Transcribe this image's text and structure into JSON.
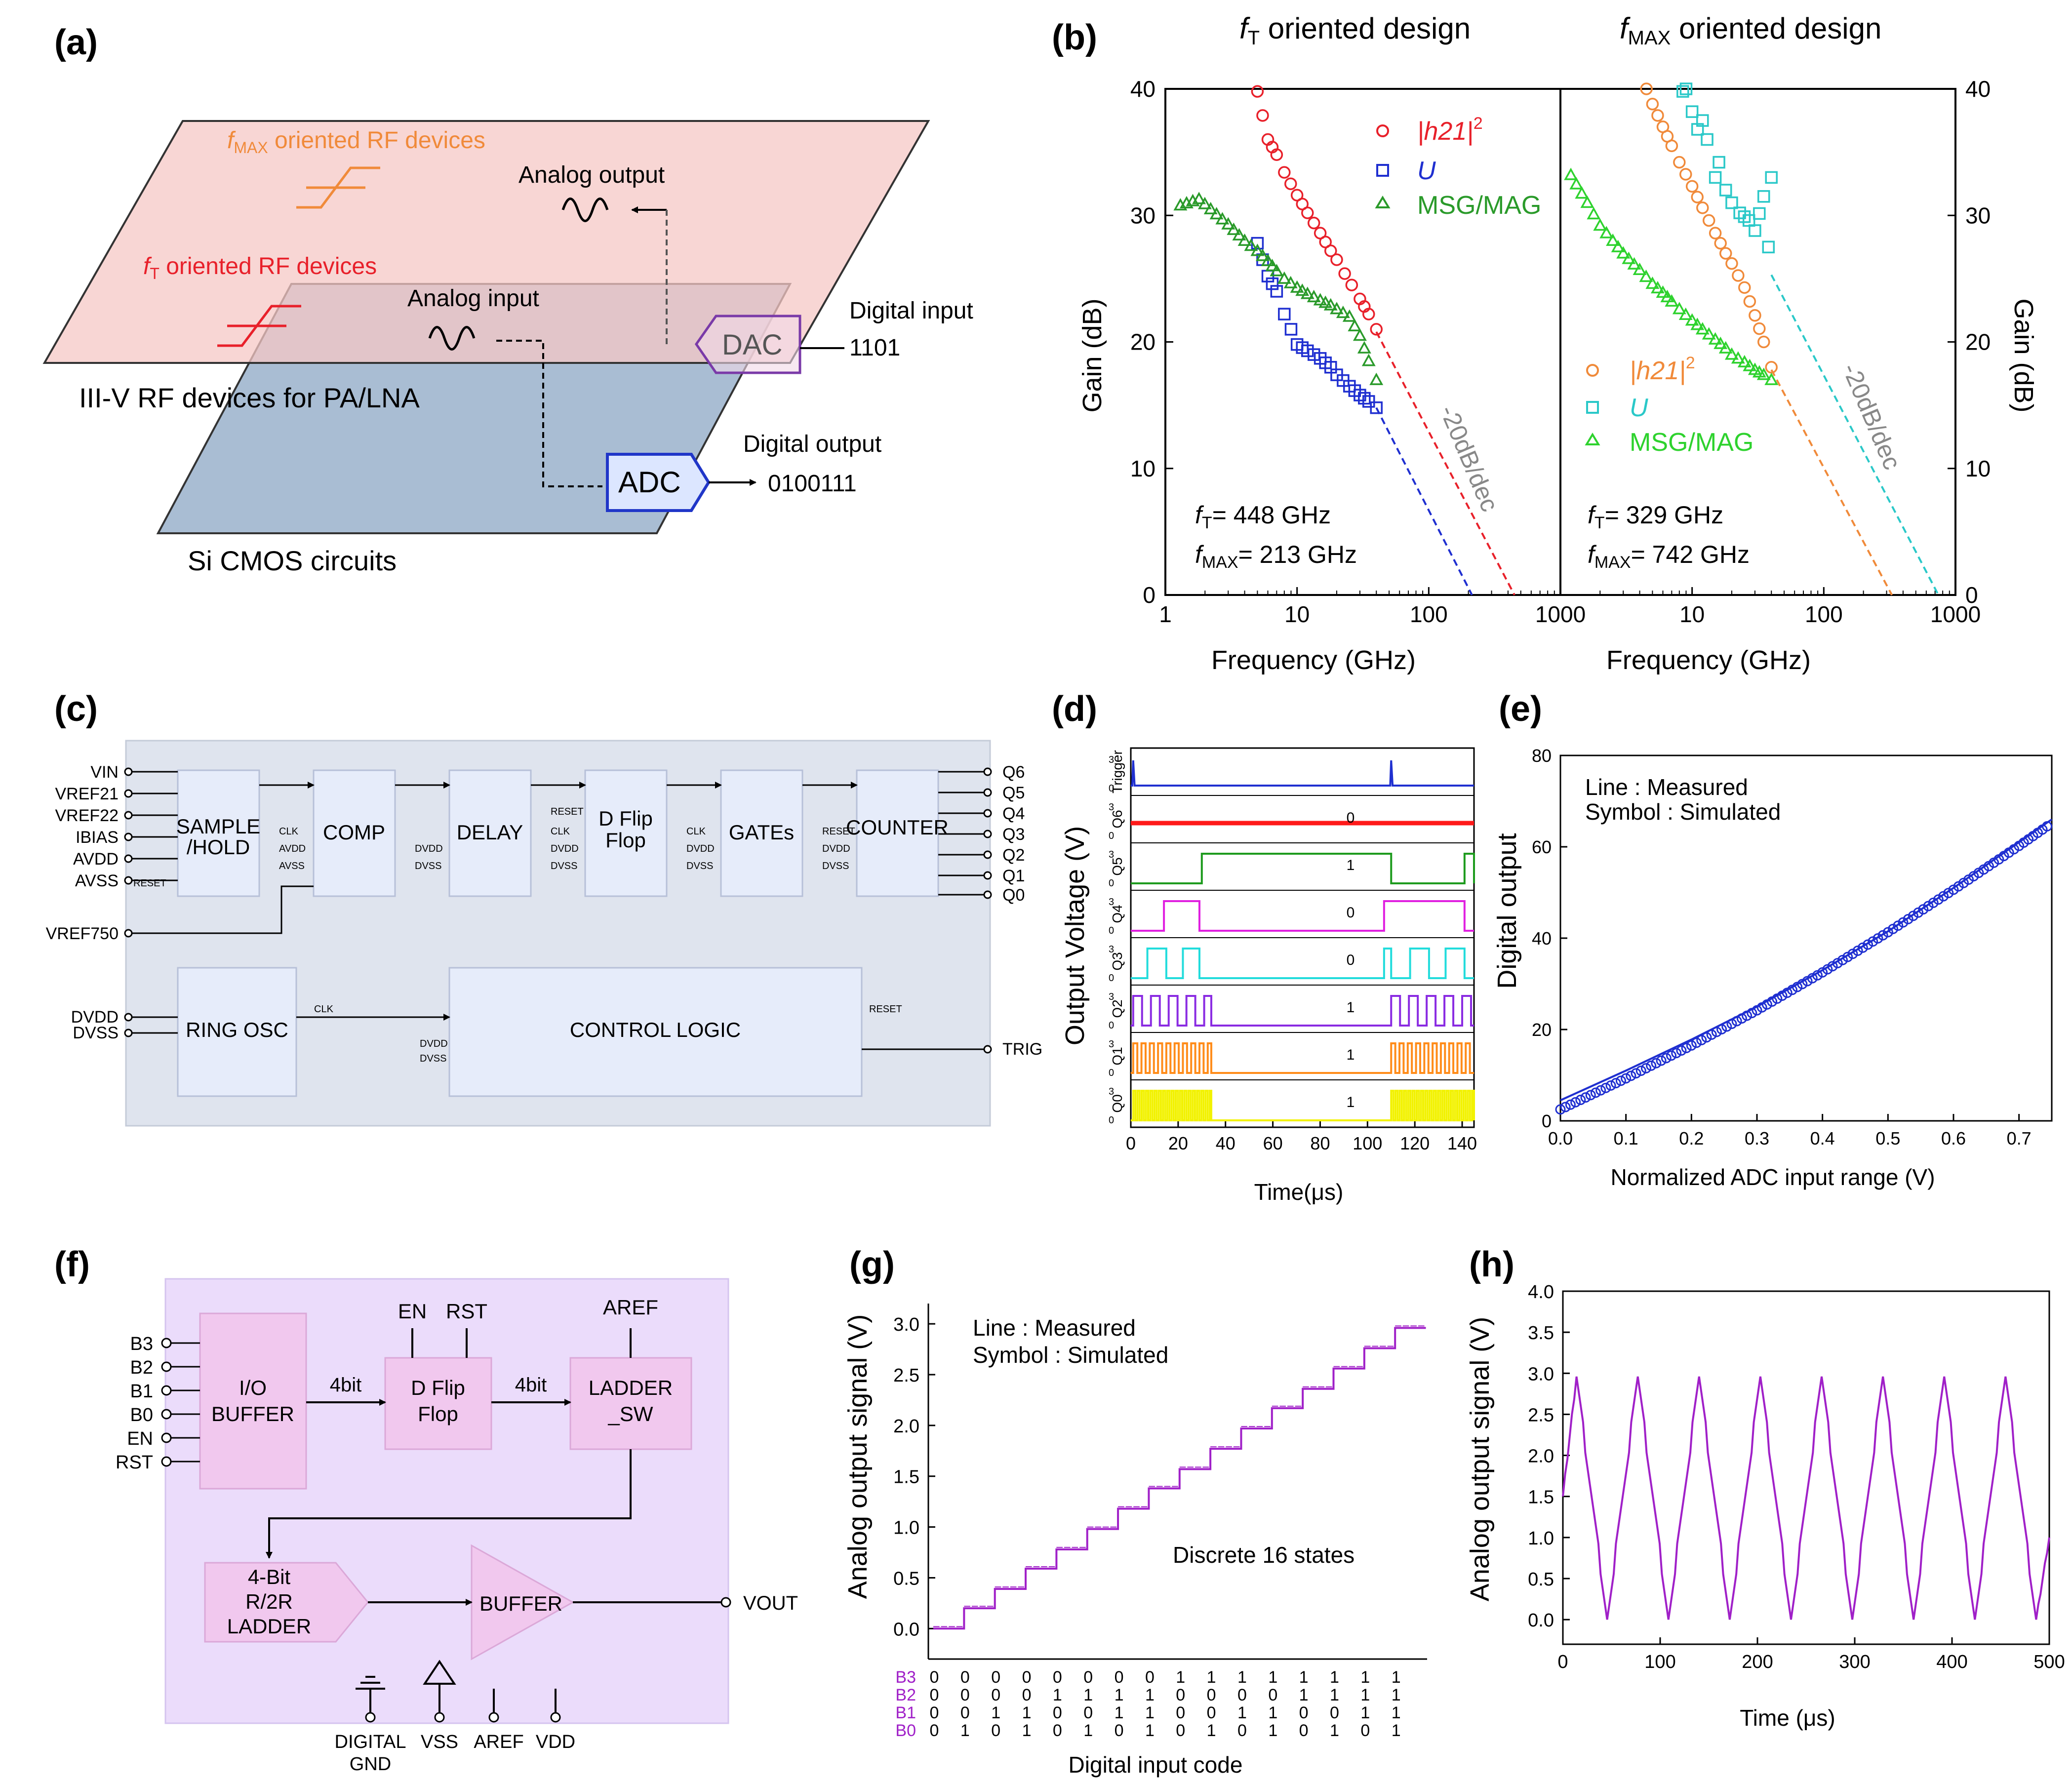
{
  "panels": {
    "a": {
      "label": "(a)",
      "fmax_rf_prefix": "f",
      "fmax_rf_sub": "MAX",
      "fmax_rf_rest": " oriented  RF devices",
      "ft_rf_prefix": "f",
      "ft_rf_sub": "T",
      "ft_rf_rest": " oriented  RF devices",
      "analog_output": "Analog output",
      "analog_input": "Analog input",
      "digital_input": "Digital input",
      "digital_input_value": "1101",
      "digital_output": "Digital output",
      "digital_output_value": "0100111",
      "dac": "DAC",
      "adc": "ADC",
      "iiiv_caption": "III-V RF devices for PA/LNA",
      "si_caption": "Si CMOS circuits",
      "colors": {
        "iiiv_plane": "#f6c8c5",
        "si_plane": "#a9bdd3",
        "fmax_text": "#f08a3a",
        "ft_text": "#e8202a",
        "adc_stroke": "#2036c8",
        "dac_stroke": "#7a3aa8"
      }
    },
    "b": {
      "label": "(b)",
      "left_title_prefix": "f",
      "left_title_sub": "T",
      "left_title_rest": " oriented design",
      "right_title_prefix": "f",
      "right_title_sub": "MAX",
      "right_title_rest": " oriented design",
      "ylabel": "Gain (dB)",
      "xlabel": "Frequency (GHz)",
      "slope_label": "-20dB/dec",
      "left_ft": "= 448 GHz",
      "left_fmax": "= 213 GHz",
      "right_ft": "= 329 GHz",
      "right_fmax": "= 742 GHz",
      "ft_sym": "f",
      "ft_sub": "T",
      "fmax_sym": "f",
      "fmax_sub": "MAX",
      "legend_h21": "|h21|",
      "legend_h21_sup": "2",
      "legend_u": "U",
      "legend_msg": "MSG/MAG"
    },
    "c": {
      "label": "(c)",
      "blocks": {
        "sample_hold_1": "SAMPLE",
        "sample_hold_2": "/HOLD",
        "comp": "COMP",
        "delay": "DELAY",
        "dff_1": "D Flip",
        "dff_2": "Flop",
        "gates": "GATEs",
        "counter": "COUNTER",
        "ring": "RING OSC",
        "control": "CONTROL LOGIC"
      },
      "inputs": [
        "VIN",
        "VREF21",
        "VREF22",
        "IBIAS",
        "AVDD",
        "AVSS"
      ],
      "outputs": [
        "Q6",
        "Q5",
        "Q4",
        "Q3",
        "Q2",
        "Q1",
        "Q0"
      ],
      "vref750": "VREF750",
      "dvdd": "DVDD",
      "dvss": "DVSS",
      "trig": "TRIG",
      "clk": "CLK",
      "reset": "RESET",
      "avdd": "AVDD",
      "avss": "AVSS"
    },
    "d": {
      "label": "(d)",
      "ylabel": "Output Voltage (V)",
      "xlabel": "Time(μs)",
      "channels": [
        "Trigger",
        "Q6",
        "Q5",
        "Q4",
        "Q3",
        "Q2",
        "Q1",
        "Q0"
      ],
      "states": [
        "0",
        "1",
        "0",
        "0",
        "1",
        "1",
        "1"
      ],
      "tick_3": "3",
      "tick_0": "0"
    },
    "e": {
      "label": "(e)",
      "ylabel": "Digital output",
      "xlabel": "Normalized ADC input range (V)",
      "note_line": "Line : Measured",
      "note_sym": "Symbol : Simulated"
    },
    "f": {
      "label": "(f)",
      "pins_in": [
        "B3",
        "B2",
        "B1",
        "B0",
        "EN",
        "RST"
      ],
      "io_1": "I/O",
      "io_2": "BUFFER",
      "dff_1": "D Flip",
      "dff_2": "Flop",
      "ladder_sw_1": "LADDER",
      "ladder_sw_2": "_SW",
      "r2r_1": "4-Bit",
      "r2r_2": "R/2R",
      "r2r_3": "LADDER",
      "buffer": "BUFFER",
      "bus_1": "4bit",
      "bus_2": "4bit",
      "en": "EN",
      "rst": "RST",
      "aref_top": "AREF",
      "vout": "VOUT",
      "digital": "DIGITAL",
      "gnd": "GND",
      "vss": "VSS",
      "aref": "AREF",
      "vdd": "VDD"
    },
    "g": {
      "label": "(g)",
      "ylabel": "Analog output signal (V)",
      "xlabel": "Digital input code",
      "note_line": "Line : Measured",
      "note_sym": "Symbol : Simulated",
      "note_states": "Discrete 16 states",
      "bit_names": [
        "B3",
        "B2",
        "B1",
        "B0"
      ]
    },
    "h": {
      "label": "(h)",
      "ylabel": "Analog output signal (V)",
      "xlabel": "Time (μs)"
    }
  },
  "chart_data": [
    {
      "id": "b-left",
      "type": "scatter",
      "xscale": "log",
      "xlim": [
        1,
        1000
      ],
      "ylim": [
        0,
        40
      ],
      "xticks": [
        1,
        10,
        100,
        1000
      ],
      "yticks": [
        0,
        10,
        20,
        30,
        40
      ],
      "xlabel": "Frequency (GHz)",
      "ylabel": "Gain (dB)",
      "series": [
        {
          "name": "|h21|^2",
          "marker": "circle",
          "color": "#e8202a",
          "points": [
            [
              5,
              39.8
            ],
            [
              6,
              36
            ],
            [
              7,
              34.8
            ],
            [
              8,
              33.4
            ],
            [
              10,
              31.6
            ],
            [
              12,
              30.2
            ],
            [
              15,
              28.6
            ],
            [
              18,
              27.2
            ],
            [
              20,
              26.5
            ],
            [
              23,
              25.4
            ],
            [
              26,
              24.5
            ],
            [
              30,
              23.4
            ],
            [
              35,
              22.2
            ],
            [
              40,
              21
            ]
          ]
        },
        {
          "name": "U",
          "marker": "square",
          "color": "#1f2fd0",
          "points": [
            [
              5,
              27.8
            ],
            [
              6,
              25.2
            ],
            [
              7,
              24
            ],
            [
              8,
              22.2
            ],
            [
              9,
              21
            ],
            [
              10,
              19.8
            ],
            [
              12,
              19.3
            ],
            [
              15,
              18.7
            ],
            [
              18,
              18
            ],
            [
              20,
              17.4
            ],
            [
              25,
              16.5
            ],
            [
              30,
              15.8
            ],
            [
              35,
              15.3
            ],
            [
              40,
              14.8
            ]
          ]
        },
        {
          "name": "MSG/MAG",
          "marker": "triangle",
          "color": "#2a9a2a",
          "points": [
            [
              1.3,
              30.8
            ],
            [
              1.8,
              31.3
            ],
            [
              3,
              29.3
            ],
            [
              4,
              28
            ],
            [
              5,
              27.2
            ],
            [
              6,
              26.4
            ],
            [
              7,
              25.6
            ],
            [
              8,
              25
            ],
            [
              10,
              24.3
            ],
            [
              12,
              23.8
            ],
            [
              15,
              23.3
            ],
            [
              18,
              22.9
            ],
            [
              20,
              22.6
            ],
            [
              25,
              22
            ],
            [
              30,
              20.5
            ],
            [
              35,
              18.5
            ],
            [
              40,
              17
            ]
          ]
        }
      ],
      "extrapolations": [
        {
          "color": "#e8202a",
          "from": [
            40,
            20.8
          ],
          "to": [
            448,
            0
          ]
        },
        {
          "color": "#1f2fd0",
          "from": [
            40,
            14.8
          ],
          "to": [
            213,
            0
          ]
        }
      ]
    },
    {
      "id": "b-right",
      "type": "scatter",
      "xscale": "log",
      "xlim": [
        1,
        1000
      ],
      "ylim": [
        0,
        40
      ],
      "xticks": [
        1,
        10,
        100,
        1000
      ],
      "yticks": [
        0,
        10,
        20,
        30,
        40
      ],
      "xlabel": "Frequency (GHz)",
      "ylabel": "Gain (dB)",
      "series": [
        {
          "name": "|h21|^2",
          "marker": "circle",
          "color": "#f08a3a",
          "points": [
            [
              4.5,
              40
            ],
            [
              5,
              38.8
            ],
            [
              6,
              37
            ],
            [
              7,
              35.5
            ],
            [
              8,
              34.2
            ],
            [
              10,
              32.3
            ],
            [
              12,
              30.6
            ],
            [
              15,
              28.6
            ],
            [
              18,
              27
            ],
            [
              20,
              26.2
            ],
            [
              25,
              24.3
            ],
            [
              30,
              22.1
            ],
            [
              35,
              20
            ],
            [
              40,
              18
            ]
          ]
        },
        {
          "name": "U",
          "marker": "square",
          "color": "#2ac8c8",
          "points": [
            [
              8.5,
              39.8
            ],
            [
              9,
              40
            ],
            [
              10,
              38.2
            ],
            [
              11,
              36.8
            ],
            [
              12,
              37.5
            ],
            [
              13,
              36
            ],
            [
              15,
              33
            ],
            [
              16,
              34.2
            ],
            [
              18,
              32
            ],
            [
              20,
              31
            ],
            [
              23,
              30.2
            ],
            [
              27,
              29.6
            ],
            [
              30,
              28.8
            ],
            [
              35,
              31.5
            ],
            [
              38,
              27.5
            ],
            [
              40,
              33
            ]
          ]
        },
        {
          "name": "MSG/MAG",
          "marker": "triangle",
          "color": "#2ed22e",
          "points": [
            [
              1.2,
              33.2
            ],
            [
              1.6,
              31
            ],
            [
              2,
              29.2
            ],
            [
              2.5,
              28
            ],
            [
              3,
              27
            ],
            [
              4,
              25.7
            ],
            [
              5,
              24.6
            ],
            [
              6,
              23.9
            ],
            [
              7,
              23.2
            ],
            [
              8,
              22.6
            ],
            [
              10,
              21.7
            ],
            [
              12,
              21
            ],
            [
              15,
              20.2
            ],
            [
              18,
              19.5
            ],
            [
              20,
              19
            ],
            [
              25,
              18.4
            ],
            [
              30,
              17.8
            ],
            [
              35,
              17.4
            ],
            [
              40,
              17
            ]
          ]
        }
      ],
      "extrapolations": [
        {
          "color": "#f08a3a",
          "from": [
            40,
            17.8
          ],
          "to": [
            329,
            0
          ]
        },
        {
          "color": "#2ac8c8",
          "from": [
            40,
            25.3
          ],
          "to": [
            742,
            0
          ]
        }
      ]
    },
    {
      "id": "d",
      "type": "line",
      "xlim": [
        0,
        145
      ],
      "xticks": [
        0,
        20,
        40,
        60,
        80,
        100,
        120,
        140
      ],
      "xlabel": "Time(μs)",
      "ylabel": "Output Voltage (V)",
      "traces": [
        {
          "name": "Trigger",
          "color": "#2030d0",
          "kind": "trigger",
          "pulses": [
            1,
            110
          ]
        },
        {
          "name": "Q6",
          "color": "#ff1a1a",
          "state": "0",
          "kind": "constant",
          "level": 3
        },
        {
          "name": "Q5",
          "color": "#1e9b1e",
          "state": "1",
          "kind": "gate",
          "high": [
            [
              30,
              110
            ],
            [
              141,
              145
            ]
          ],
          "period": 0
        },
        {
          "name": "Q4",
          "color": "#e020e0",
          "state": "0",
          "kind": "gate",
          "high": [
            [
              14,
              29
            ],
            [
              107,
              141
            ]
          ],
          "period": 0
        },
        {
          "name": "Q3",
          "color": "#22dcdc",
          "state": "0",
          "kind": "gate",
          "high": [
            [
              7,
              15
            ],
            [
              22,
              29
            ],
            [
              107,
              110
            ],
            [
              118,
              126
            ],
            [
              133,
              141
            ]
          ],
          "period": 0
        },
        {
          "name": "Q2",
          "color": "#8a2be2",
          "state": "1",
          "kind": "burst",
          "bursts": [
            [
              1,
              34
            ],
            [
              110,
              145
            ]
          ],
          "period": 7.5
        },
        {
          "name": "Q1",
          "color": "#ff8c1a",
          "state": "1",
          "kind": "burst",
          "bursts": [
            [
              1,
              34
            ],
            [
              110,
              145
            ]
          ],
          "period": 3.5
        },
        {
          "name": "Q0",
          "color": "#f2f200",
          "state": "1",
          "kind": "burst",
          "bursts": [
            [
              1,
              34
            ],
            [
              110,
              145
            ]
          ],
          "period": 1.8
        }
      ]
    },
    {
      "id": "e",
      "type": "line",
      "xlim": [
        0,
        0.75
      ],
      "ylim": [
        0,
        80
      ],
      "xticks": [
        0,
        0.1,
        0.2,
        0.3,
        0.4,
        0.5,
        0.6,
        0.7
      ],
      "yticks": [
        0,
        20,
        40,
        60,
        80
      ],
      "xlabel": "Normalized ADC input range (V)",
      "ylabel": "Digital output",
      "series": [
        {
          "name": "Measured",
          "style": "line",
          "color": "#1f2fd0",
          "points": [
            [
              0,
              4.5
            ],
            [
              0.1,
              11
            ],
            [
              0.2,
              17.8
            ],
            [
              0.3,
              25
            ],
            [
              0.4,
              33
            ],
            [
              0.5,
              41.5
            ],
            [
              0.6,
              51
            ],
            [
              0.7,
              61
            ],
            [
              0.75,
              66
            ]
          ]
        },
        {
          "name": "Simulated",
          "style": "circle",
          "color": "#1f2fd0",
          "points": [
            [
              0,
              2.5
            ],
            [
              0.1,
              9.3
            ],
            [
              0.2,
              16.5
            ],
            [
              0.3,
              24.2
            ],
            [
              0.4,
              32.5
            ],
            [
              0.5,
              41.3
            ],
            [
              0.6,
              50.6
            ],
            [
              0.7,
              60.2
            ],
            [
              0.75,
              65.2
            ]
          ]
        }
      ]
    },
    {
      "id": "g",
      "type": "step",
      "ylim": [
        -0.3,
        3.2
      ],
      "yticks": [
        0,
        0.5,
        1,
        1.5,
        2,
        2.5,
        3
      ],
      "xlabel": "Digital input code",
      "ylabel": "Analog output signal (V)",
      "color": "#a020c8",
      "codes": [
        [
          "0",
          "0",
          "0",
          "0"
        ],
        [
          "0",
          "0",
          "0",
          "1"
        ],
        [
          "0",
          "0",
          "1",
          "0"
        ],
        [
          "0",
          "0",
          "1",
          "1"
        ],
        [
          "0",
          "1",
          "0",
          "0"
        ],
        [
          "0",
          "1",
          "0",
          "1"
        ],
        [
          "0",
          "1",
          "1",
          "0"
        ],
        [
          "0",
          "1",
          "1",
          "1"
        ],
        [
          "1",
          "0",
          "0",
          "0"
        ],
        [
          "1",
          "0",
          "0",
          "1"
        ],
        [
          "1",
          "0",
          "1",
          "0"
        ],
        [
          "1",
          "0",
          "1",
          "1"
        ],
        [
          "1",
          "1",
          "0",
          "0"
        ],
        [
          "1",
          "1",
          "0",
          "1"
        ],
        [
          "1",
          "1",
          "1",
          "0"
        ],
        [
          "1",
          "1",
          "1",
          "1"
        ]
      ],
      "values": [
        0,
        0.2,
        0.39,
        0.59,
        0.78,
        0.98,
        1.18,
        1.38,
        1.57,
        1.77,
        1.97,
        2.17,
        2.36,
        2.56,
        2.76,
        2.96
      ]
    },
    {
      "id": "h",
      "type": "line",
      "xlim": [
        0,
        500
      ],
      "ylim": [
        -0.3,
        4
      ],
      "xticks": [
        0,
        100,
        200,
        300,
        400,
        500
      ],
      "yticks": [
        0,
        0.5,
        1,
        1.5,
        2,
        2.5,
        3,
        3.5,
        4
      ],
      "xlabel": "Time (μs)",
      "ylabel": "Analog output signal (V)",
      "color": "#a020c8",
      "waveform": {
        "shape": "triangle",
        "min": 0,
        "max": 2.96,
        "period": 63,
        "start_level": 1.5,
        "peaks_at": [
          14,
          77,
          140,
          203,
          266,
          329,
          392,
          455
        ],
        "end_level": 1.0
      }
    }
  ]
}
